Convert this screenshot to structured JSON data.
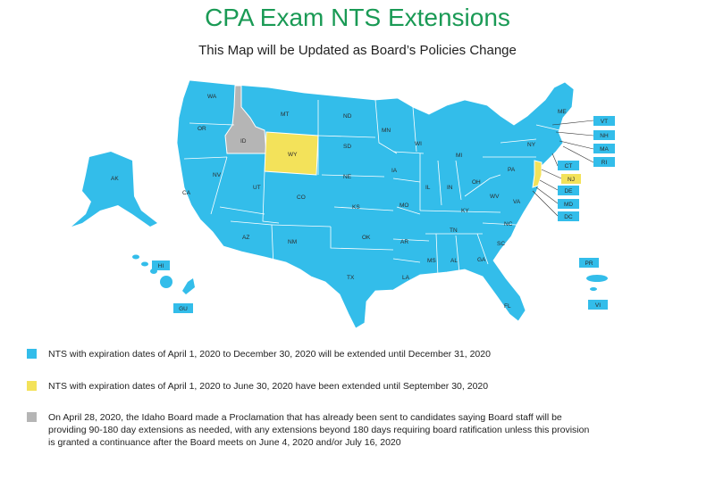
{
  "title": "CPA Exam NTS Extensions",
  "subtitle": "This Map will be Updated as Board’s Policies Change",
  "colors": {
    "blue": "#33bdea",
    "yellow": "#f3e25a",
    "gray": "#b5b5b5",
    "title_green": "#1a9a55"
  },
  "states": {
    "WA": "WA",
    "OR": "OR",
    "CA": "CA",
    "ID": "ID",
    "NV": "NV",
    "MT": "MT",
    "WY": "WY",
    "UT": "UT",
    "AZ": "AZ",
    "CO": "CO",
    "NM": "NM",
    "ND": "ND",
    "SD": "SD",
    "NE": "NE",
    "KS": "KS",
    "OK": "OK",
    "TX": "TX",
    "MN": "MN",
    "IA": "IA",
    "MO": "MO",
    "AR": "AR",
    "LA": "LA",
    "WI": "WI",
    "IL": "IL",
    "MI": "MI",
    "IN": "IN",
    "OH": "OH",
    "KY": "KY",
    "TN": "TN",
    "MS": "MS",
    "AL": "AL",
    "GA": "GA",
    "FL": "FL",
    "SC": "SC",
    "NC": "NC",
    "VA": "VA",
    "WV": "WV",
    "PA": "PA",
    "NY": "NY",
    "ME": "ME",
    "AK": "AK",
    "HI": "HI",
    "GU": "GU",
    "PR": "PR",
    "VI": "VI",
    "VT": "VT",
    "NH": "NH",
    "MA": "MA",
    "RI": "RI",
    "CT": "CT",
    "NJ": "NJ",
    "DE": "DE",
    "MD": "MD",
    "DC": "DC"
  },
  "legend": [
    {
      "color": "blue",
      "text": "NTS with expiration dates of April 1, 2020 to December 30, 2020 will be extended until December 31, 2020"
    },
    {
      "color": "yellow",
      "text": "NTS with expiration dates of April 1, 2020 to June 30, 2020 have been extended until September 30, 2020"
    },
    {
      "color": "gray",
      "text": "On April 28, 2020, the Idaho Board made a Proclamation that has already been sent to candidates saying Board staff will be providing 90-180 day extensions as needed, with any extensions beyond 180 days requiring board ratification unless this provision is granted a continuance after the Board meets on June 4, 2020 and/or July 16, 2020"
    }
  ]
}
